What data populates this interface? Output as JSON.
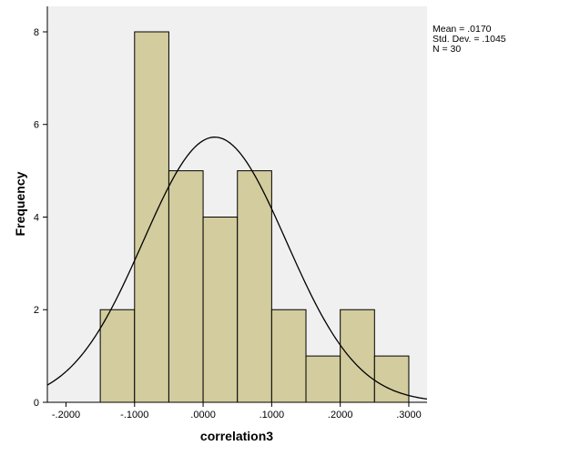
{
  "chart_data": {
    "type": "bar",
    "subtype": "histogram",
    "title": "",
    "xlabel": "correlation3",
    "ylabel": "Frequency",
    "bins": [
      {
        "from": -0.15,
        "to": -0.1,
        "count": 2
      },
      {
        "from": -0.1,
        "to": -0.05,
        "count": 8
      },
      {
        "from": -0.05,
        "to": 0.0,
        "count": 5
      },
      {
        "from": 0.0,
        "to": 0.05,
        "count": 4
      },
      {
        "from": 0.05,
        "to": 0.1,
        "count": 5
      },
      {
        "from": 0.1,
        "to": 0.15,
        "count": 2
      },
      {
        "from": 0.15,
        "to": 0.2,
        "count": 1
      },
      {
        "from": 0.2,
        "to": 0.25,
        "count": 2
      },
      {
        "from": 0.25,
        "to": 0.3,
        "count": 1
      }
    ],
    "normal_curve": {
      "mean": 0.017,
      "std": 0.1045,
      "n": 30
    },
    "xlim": [
      -0.2272,
      0.3266
    ],
    "ylim": [
      0,
      8.55
    ],
    "x_ticks": [
      {
        "value": -0.2,
        "label": "-.2000"
      },
      {
        "value": -0.1,
        "label": "-.1000"
      },
      {
        "value": 0.0,
        "label": ".0000"
      },
      {
        "value": 0.1,
        "label": ".1000"
      },
      {
        "value": 0.2,
        "label": ".2000"
      },
      {
        "value": 0.3,
        "label": ".3000"
      }
    ],
    "y_ticks": [
      {
        "value": 0,
        "label": "0"
      },
      {
        "value": 2,
        "label": "2"
      },
      {
        "value": 4,
        "label": "4"
      },
      {
        "value": 6,
        "label": "6"
      },
      {
        "value": 8,
        "label": "8"
      }
    ],
    "grid": false,
    "legend": "none",
    "stats_box": {
      "position": "top-right",
      "lines": [
        "Mean = .0170",
        "Std. Dev. = .1045",
        "N = 30"
      ]
    },
    "colors": {
      "bar_fill": "#d2cc9e",
      "bar_stroke": "#000000",
      "plot_background": "#f0f0f0",
      "curve": "#000000"
    }
  }
}
